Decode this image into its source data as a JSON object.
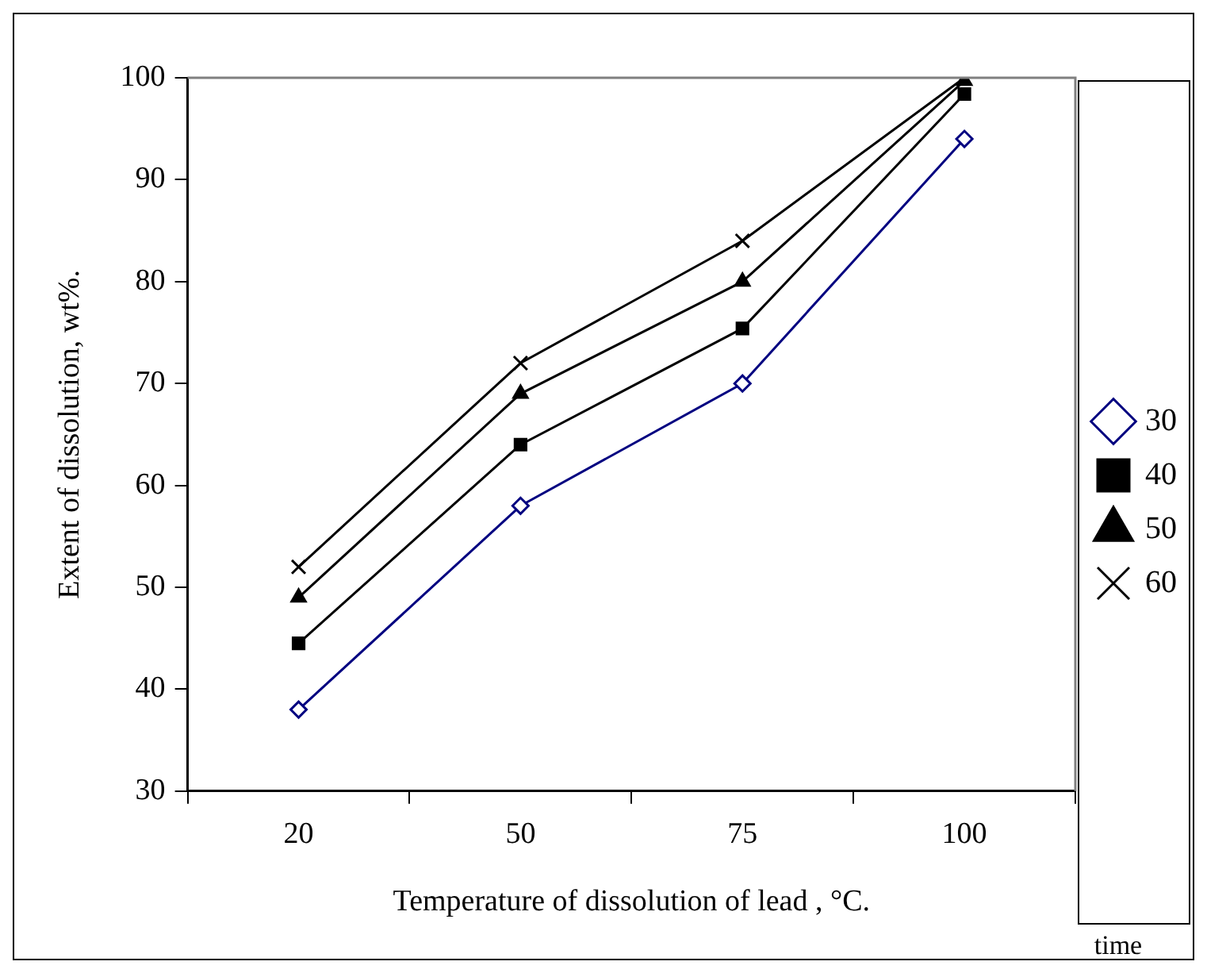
{
  "chart_data": {
    "type": "line",
    "xlabel": "Temperature of dissolution of lead , °C.",
    "ylabel": "Extent of dissolution, wt%.",
    "legend_title": "time",
    "legend": "right",
    "categories": [
      "20",
      "50",
      "75",
      "100"
    ],
    "ylim": [
      30,
      100
    ],
    "yticks": [
      30,
      40,
      50,
      60,
      70,
      80,
      90,
      100
    ],
    "grid": false,
    "line_style": "solid",
    "series": [
      {
        "name": "30",
        "color": "#000080",
        "marker": "diamond",
        "values": [
          38,
          58,
          70,
          94
        ]
      },
      {
        "name": "40",
        "color": "#000000",
        "marker": "square",
        "values": [
          44.5,
          64,
          75.4,
          98.4
        ]
      },
      {
        "name": "50",
        "color": "#000000",
        "marker": "triangle",
        "values": [
          49,
          69,
          80,
          99.7
        ]
      },
      {
        "name": "60",
        "color": "#000000",
        "marker": "cross",
        "values": [
          52,
          72,
          84,
          100
        ]
      }
    ]
  }
}
